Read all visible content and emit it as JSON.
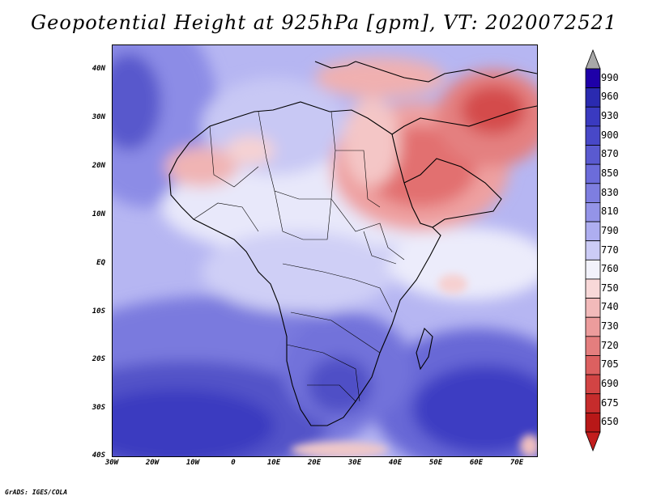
{
  "title": "Geopotential Height at 925hPa [gpm], VT: 2020072521",
  "credit": "GrADS: IGES/COLA",
  "lat_labels": [
    "40N",
    "30N",
    "20N",
    "10N",
    "EQ",
    "10S",
    "20S",
    "30S",
    "40S"
  ],
  "lon_labels": [
    "30W",
    "20W",
    "10W",
    "0",
    "10E",
    "20E",
    "30E",
    "40E",
    "50E",
    "60E",
    "70E"
  ],
  "map_extent": {
    "lon": [
      -30,
      75
    ],
    "lat": [
      -40,
      45
    ]
  },
  "colorbar": {
    "levels": [
      "990",
      "960",
      "930",
      "900",
      "870",
      "850",
      "830",
      "810",
      "790",
      "770",
      "760",
      "750",
      "740",
      "730",
      "720",
      "705",
      "690",
      "675",
      "650"
    ],
    "colors": [
      "#1e00a8",
      "#2a2ab0",
      "#3a3ac0",
      "#4848c8",
      "#5a5ad0",
      "#6c6cda",
      "#7e7ee0",
      "#9494e8",
      "#aeaef0",
      "#ccccf6",
      "#f2f2fb",
      "#f8d8d8",
      "#f2baba",
      "#ec9c9c",
      "#e47e7e",
      "#dc6060",
      "#d24444",
      "#c62c2c",
      "#b81818"
    ],
    "top_arrow_color": "#a8a8a8",
    "bottom_arrow_color": "#c21e1e"
  }
}
